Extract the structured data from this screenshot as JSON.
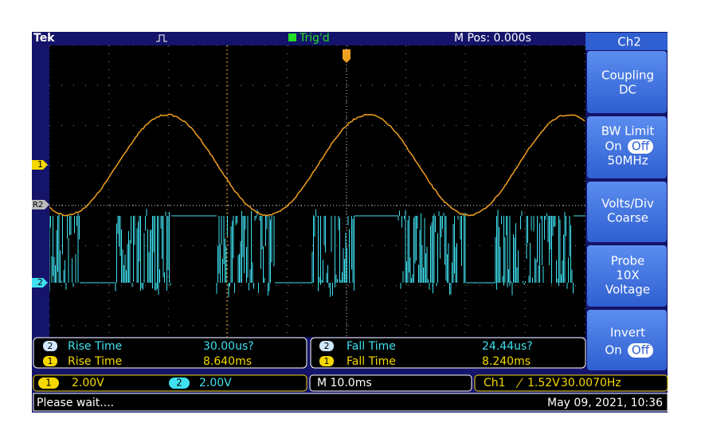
{
  "header": {
    "brand": "Tek",
    "trigger_status": "Trig'd",
    "position": "M Pos: 0.000s"
  },
  "side_menu": {
    "title": "Ch2",
    "buttons": [
      {
        "label": "Coupling",
        "value": "DC"
      },
      {
        "label": "BW Limit",
        "options": [
          "On",
          "Off"
        ],
        "value": "50MHz"
      },
      {
        "label": "Volts/Div",
        "value": "Coarse"
      },
      {
        "label": "Probe",
        "value": "10X",
        "detail": "Voltage"
      },
      {
        "label": "Invert",
        "options": [
          "On",
          "Off"
        ]
      }
    ]
  },
  "markers": {
    "ch1": "1",
    "ref2": "R2",
    "ch2": "2"
  },
  "measurements": [
    {
      "channel": "2",
      "name": "Rise Time",
      "value": "30.00us?"
    },
    {
      "channel": "1",
      "name": "Rise Time",
      "value": "8.640ms"
    },
    {
      "channel": "2",
      "name": "Fall Time",
      "value": "24.44us?"
    },
    {
      "channel": "1",
      "name": "Fall Time",
      "value": "8.240ms"
    }
  ],
  "status_bar": {
    "ch1_badge": "1",
    "ch1_scale": "2.00V",
    "ch2_badge": "2",
    "ch2_scale": "2.00V",
    "timebase": "M 10.0ms",
    "trigger_source": "Ch1",
    "trigger_level": "1.52V",
    "frequency": "30.0070Hz"
  },
  "footer": {
    "message": "Please wait....",
    "timestamp": "May 09, 2021, 10:36"
  }
}
